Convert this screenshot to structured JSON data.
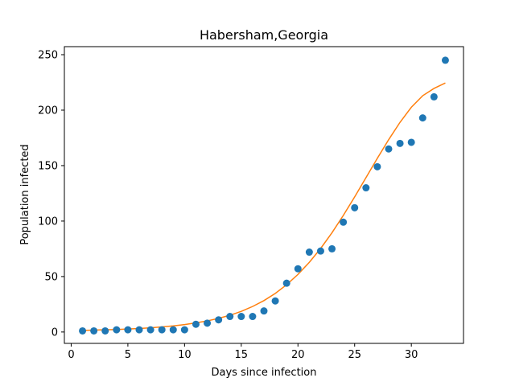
{
  "chart_data": {
    "type": "scatter",
    "title": "Habersham,Georgia",
    "xlabel": "Days since infection",
    "ylabel": "Population infected",
    "xlim": [
      -0.6,
      34.6
    ],
    "ylim": [
      -10.25,
      257.25
    ],
    "xticks": [
      0,
      5,
      10,
      15,
      20,
      25,
      30
    ],
    "yticks": [
      0,
      50,
      100,
      150,
      200,
      250
    ],
    "grid": false,
    "legend": "none",
    "series": [
      {
        "kind": "scatter",
        "color": "#1f77b4",
        "x": [
          1,
          2,
          3,
          4,
          5,
          6,
          7,
          8,
          9,
          10,
          11,
          12,
          13,
          14,
          15,
          16,
          17,
          18,
          19,
          20,
          21,
          22,
          23,
          24,
          25,
          26,
          27,
          28,
          29,
          30,
          31,
          32,
          33
        ],
        "y": [
          1,
          1,
          1,
          2,
          2,
          2,
          2,
          2,
          2,
          2,
          7,
          8,
          11,
          14,
          14,
          14,
          19,
          28,
          44,
          57,
          72,
          73,
          75,
          99,
          112,
          130,
          149,
          165,
          170,
          171,
          193,
          212,
          245
        ]
      },
      {
        "kind": "line",
        "color": "#ff7f0e",
        "x": [
          1,
          2,
          3,
          4,
          5,
          6,
          7,
          8,
          9,
          10,
          11,
          12,
          13,
          14,
          15,
          16,
          17,
          18,
          19,
          20,
          21,
          22,
          23,
          24,
          25,
          26,
          27,
          28,
          29,
          30,
          31,
          32,
          33
        ],
        "y": [
          1.4,
          1.7,
          2.0,
          2.3,
          2.7,
          3.2,
          3.8,
          4.6,
          5.5,
          6.7,
          8.2,
          10.0,
          12.3,
          15.1,
          18.6,
          23.0,
          28.3,
          34.8,
          42.6,
          51.9,
          62.8,
          75.3,
          89.5,
          105.1,
          121.8,
          139.2,
          156.6,
          173.4,
          189.0,
          202.6,
          213.0,
          219.6,
          224.5
        ]
      }
    ]
  }
}
